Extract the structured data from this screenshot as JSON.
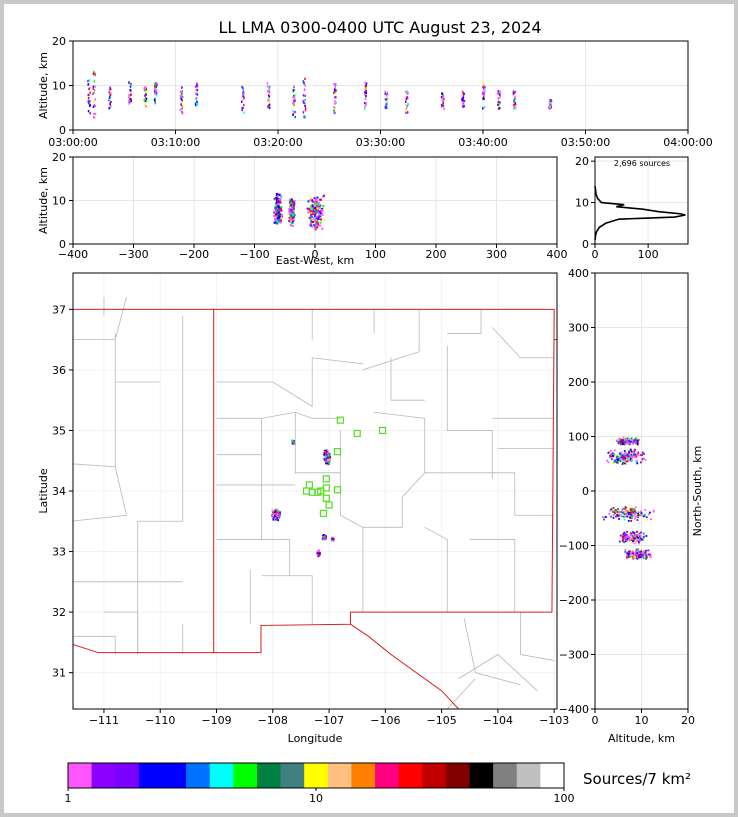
{
  "title": "LL LMA 0300-0400 UTC August 23, 2024",
  "source_count_label": "2,696 sources",
  "colorbar_label": "Sources/7 km²",
  "chart_data": [
    {
      "type": "scatter",
      "panel": "time-height",
      "xlabel": "",
      "ylabel": "Altitude, km",
      "x_ticks": [
        "03:00:00",
        "03:10:00",
        "03:20:00",
        "03:30:00",
        "03:40:00",
        "03:50:00",
        "04:00:00"
      ],
      "x_range_minutes": [
        0,
        60
      ],
      "y_ticks": [
        0,
        10,
        20
      ],
      "ylim": [
        0,
        20
      ],
      "grid": true,
      "clusters": [
        {
          "t": 1.5,
          "alt": [
            4,
            12
          ]
        },
        {
          "t": 2.0,
          "alt": [
            3,
            14
          ]
        },
        {
          "t": 3.5,
          "alt": [
            5,
            10
          ]
        },
        {
          "t": 5.5,
          "alt": [
            6,
            11
          ]
        },
        {
          "t": 7.0,
          "alt": [
            5,
            10
          ]
        },
        {
          "t": 8.0,
          "alt": [
            6,
            11
          ]
        },
        {
          "t": 10.5,
          "alt": [
            4,
            10
          ]
        },
        {
          "t": 12.0,
          "alt": [
            5,
            11
          ]
        },
        {
          "t": 16.5,
          "alt": [
            4,
            10
          ]
        },
        {
          "t": 19.0,
          "alt": [
            5,
            11
          ]
        },
        {
          "t": 21.5,
          "alt": [
            3,
            10
          ]
        },
        {
          "t": 22.5,
          "alt": [
            3,
            12
          ]
        },
        {
          "t": 25.5,
          "alt": [
            4,
            11
          ]
        },
        {
          "t": 28.5,
          "alt": [
            5,
            11
          ]
        },
        {
          "t": 30.5,
          "alt": [
            5,
            9
          ]
        },
        {
          "t": 32.5,
          "alt": [
            4,
            9
          ]
        },
        {
          "t": 36.0,
          "alt": [
            5,
            9
          ]
        },
        {
          "t": 38.0,
          "alt": [
            5,
            9
          ]
        },
        {
          "t": 40.0,
          "alt": [
            5,
            11
          ]
        },
        {
          "t": 41.5,
          "alt": [
            5,
            9
          ]
        },
        {
          "t": 43.0,
          "alt": [
            5,
            9
          ]
        },
        {
          "t": 46.5,
          "alt": [
            5,
            7
          ]
        }
      ]
    },
    {
      "type": "scatter",
      "panel": "east-west-height",
      "xlabel": "East-West, km",
      "ylabel": "Altitude, km",
      "x_ticks": [
        -400,
        -300,
        -200,
        -100,
        0,
        100,
        200,
        300,
        400
      ],
      "xlim": [
        -400,
        400
      ],
      "y_ticks": [
        0,
        10,
        20
      ],
      "ylim": [
        0,
        20
      ],
      "clusters": [
        {
          "x0": -70,
          "x1": -55,
          "alt": [
            4,
            12
          ]
        },
        {
          "x0": -45,
          "x1": -35,
          "alt": [
            4,
            11
          ]
        },
        {
          "x0": -15,
          "x1": 15,
          "alt": [
            3,
            12
          ]
        }
      ]
    },
    {
      "type": "line",
      "panel": "altitude-histogram",
      "xlabel": "",
      "ylabel": "",
      "x_ticks": [
        0,
        100
      ],
      "xlim": [
        0,
        175
      ],
      "y_ticks": [
        0,
        10,
        20
      ],
      "ylim": [
        0,
        21
      ],
      "profile": [
        [
          0,
          1
        ],
        [
          1,
          2
        ],
        [
          3,
          3
        ],
        [
          8,
          4
        ],
        [
          20,
          5
        ],
        [
          45,
          6
        ],
        [
          150,
          6.5
        ],
        [
          170,
          7
        ],
        [
          160,
          7.3
        ],
        [
          120,
          7.8
        ],
        [
          90,
          8.4
        ],
        [
          40,
          9
        ],
        [
          55,
          9.5
        ],
        [
          12,
          10
        ],
        [
          5,
          11
        ],
        [
          2,
          12
        ],
        [
          1,
          13
        ],
        [
          0,
          14
        ]
      ]
    },
    {
      "type": "scatter",
      "panel": "plan-view",
      "xlabel": "Longitude",
      "ylabel": "Latitude",
      "x_ticks": [
        -111,
        -110,
        -109,
        -108,
        -107,
        -106,
        -105,
        -104,
        -103
      ],
      "xlim": [
        -111.55,
        -102.95
      ],
      "y_ticks": [
        31,
        32,
        33,
        34,
        35,
        36,
        37
      ],
      "ylim": [
        30.4,
        37.6
      ],
      "clusters": [
        {
          "lon": -107.95,
          "lat": 33.62,
          "w": 0.18,
          "h": 0.2
        },
        {
          "lon": -107.05,
          "lat": 34.58,
          "w": 0.12,
          "h": 0.25
        },
        {
          "lon": -107.65,
          "lat": 34.82,
          "w": 0.05,
          "h": 0.08
        },
        {
          "lon": -107.1,
          "lat": 33.25,
          "w": 0.07,
          "h": 0.12
        },
        {
          "lon": -107.2,
          "lat": 32.98,
          "w": 0.07,
          "h": 0.12
        },
        {
          "lon": -106.95,
          "lat": 33.22,
          "w": 0.05,
          "h": 0.08
        }
      ],
      "stations": [
        [
          -106.8,
          35.17
        ],
        [
          -106.5,
          34.95
        ],
        [
          -106.05,
          35.0
        ],
        [
          -106.85,
          34.65
        ],
        [
          -107.35,
          34.1
        ],
        [
          -107.4,
          34.0
        ],
        [
          -107.3,
          33.98
        ],
        [
          -107.15,
          34.0
        ],
        [
          -107.05,
          34.2
        ],
        [
          -107.05,
          34.05
        ],
        [
          -106.85,
          34.02
        ],
        [
          -107.05,
          33.88
        ],
        [
          -107.0,
          33.77
        ],
        [
          -107.1,
          33.63
        ],
        [
          -107.2,
          33.98
        ]
      ]
    },
    {
      "type": "scatter",
      "panel": "north-south-height",
      "xlabel": "Altitude, km",
      "ylabel": "North-South, km",
      "x_ticks": [
        0,
        10,
        20
      ],
      "xlim": [
        0,
        20
      ],
      "y_ticks": [
        400,
        300,
        200,
        100,
        0,
        -100,
        -200,
        -300,
        -400
      ],
      "ylim": [
        -400,
        400
      ],
      "clusters": [
        {
          "ns": [
            85,
            100
          ],
          "alt": [
            4,
            10
          ]
        },
        {
          "ns": [
            50,
            80
          ],
          "alt": [
            2,
            11
          ]
        },
        {
          "ns": [
            -55,
            -25
          ],
          "alt": [
            1,
            13
          ]
        },
        {
          "ns": [
            -95,
            -70
          ],
          "alt": [
            5,
            11
          ]
        },
        {
          "ns": [
            -125,
            -105
          ],
          "alt": [
            6,
            12
          ]
        }
      ]
    }
  ],
  "colorbar": {
    "tick_labels": [
      "1",
      "10",
      "100"
    ],
    "tick_values": [
      1,
      10,
      100
    ],
    "colors": [
      "#ff55ff",
      "#8c00ff",
      "#7a00ff",
      "#0000ff",
      "#0000ff",
      "#0072ff",
      "#00ffff",
      "#00ff00",
      "#008040",
      "#408080",
      "#ffff00",
      "#ffbf80",
      "#ff8000",
      "#ff0080",
      "#ff0000",
      "#c00000",
      "#800000",
      "#000000",
      "#808080",
      "#c0c0c0",
      "#ffffff"
    ]
  }
}
